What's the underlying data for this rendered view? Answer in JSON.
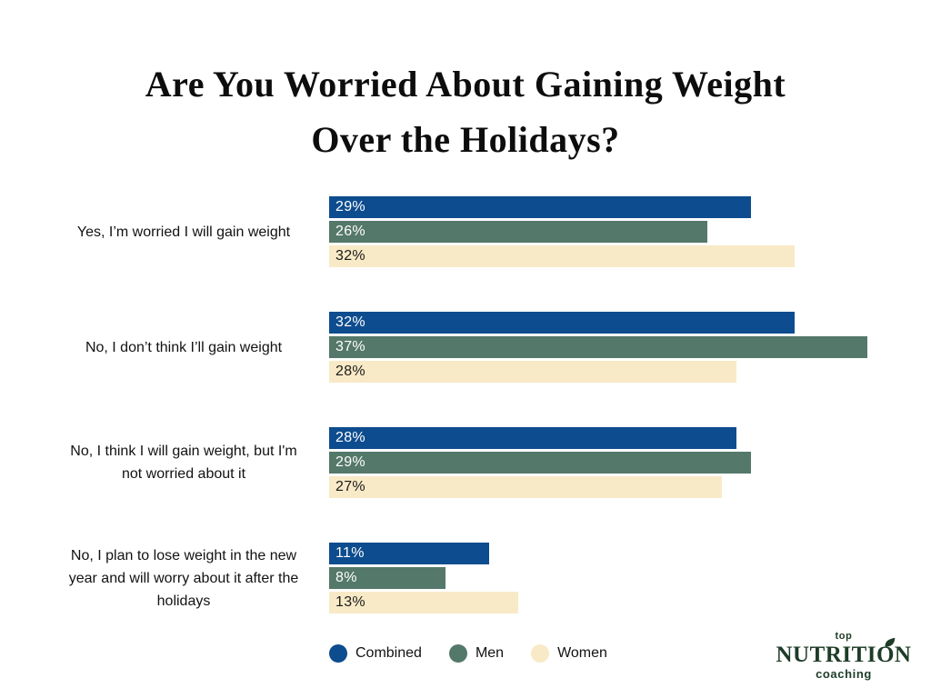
{
  "title": {
    "line1": "Are You Worried About Gaining Weight",
    "line2": "Over the Holidays?"
  },
  "chart_data": {
    "type": "bar",
    "orientation": "horizontal",
    "title": "Are You Worried About Gaining Weight Over the Holidays?",
    "categories": [
      "Yes, I’m worried I will gain weight",
      "No, I don’t think I’ll gain weight",
      "No, I think I will gain weight, but I'm not worried about it",
      "No, I plan to lose weight in the new year and will worry about it after the holidays"
    ],
    "category_lines": [
      [
        "Yes, I’m worried I will gain weight"
      ],
      [
        "No, I don’t think I’ll gain weight"
      ],
      [
        "No, I think I will gain weight, but I'm",
        "not worried about it"
      ],
      [
        "No, I plan to lose weight in the new",
        "year and will worry about it after the",
        "holidays"
      ]
    ],
    "series": [
      {
        "name": "Combined",
        "color": "#0d4c8e",
        "label_color": "#ffffff",
        "values": [
          29,
          32,
          28,
          11
        ]
      },
      {
        "name": "Men",
        "color": "#54786a",
        "label_color": "#ffffff",
        "values": [
          26,
          37,
          29,
          8
        ]
      },
      {
        "name": "Women",
        "color": "#f8eac7",
        "label_color": "#1a1a1a",
        "values": [
          32,
          28,
          27,
          13
        ]
      }
    ],
    "value_suffix": "%",
    "xlim": [
      0,
      40
    ],
    "grid": false,
    "legend_position": "bottom",
    "value_labels": "inside-start"
  },
  "logo": {
    "top": "top",
    "main": "NUTRITION",
    "sub": "coaching",
    "color": "#1e3c27"
  }
}
